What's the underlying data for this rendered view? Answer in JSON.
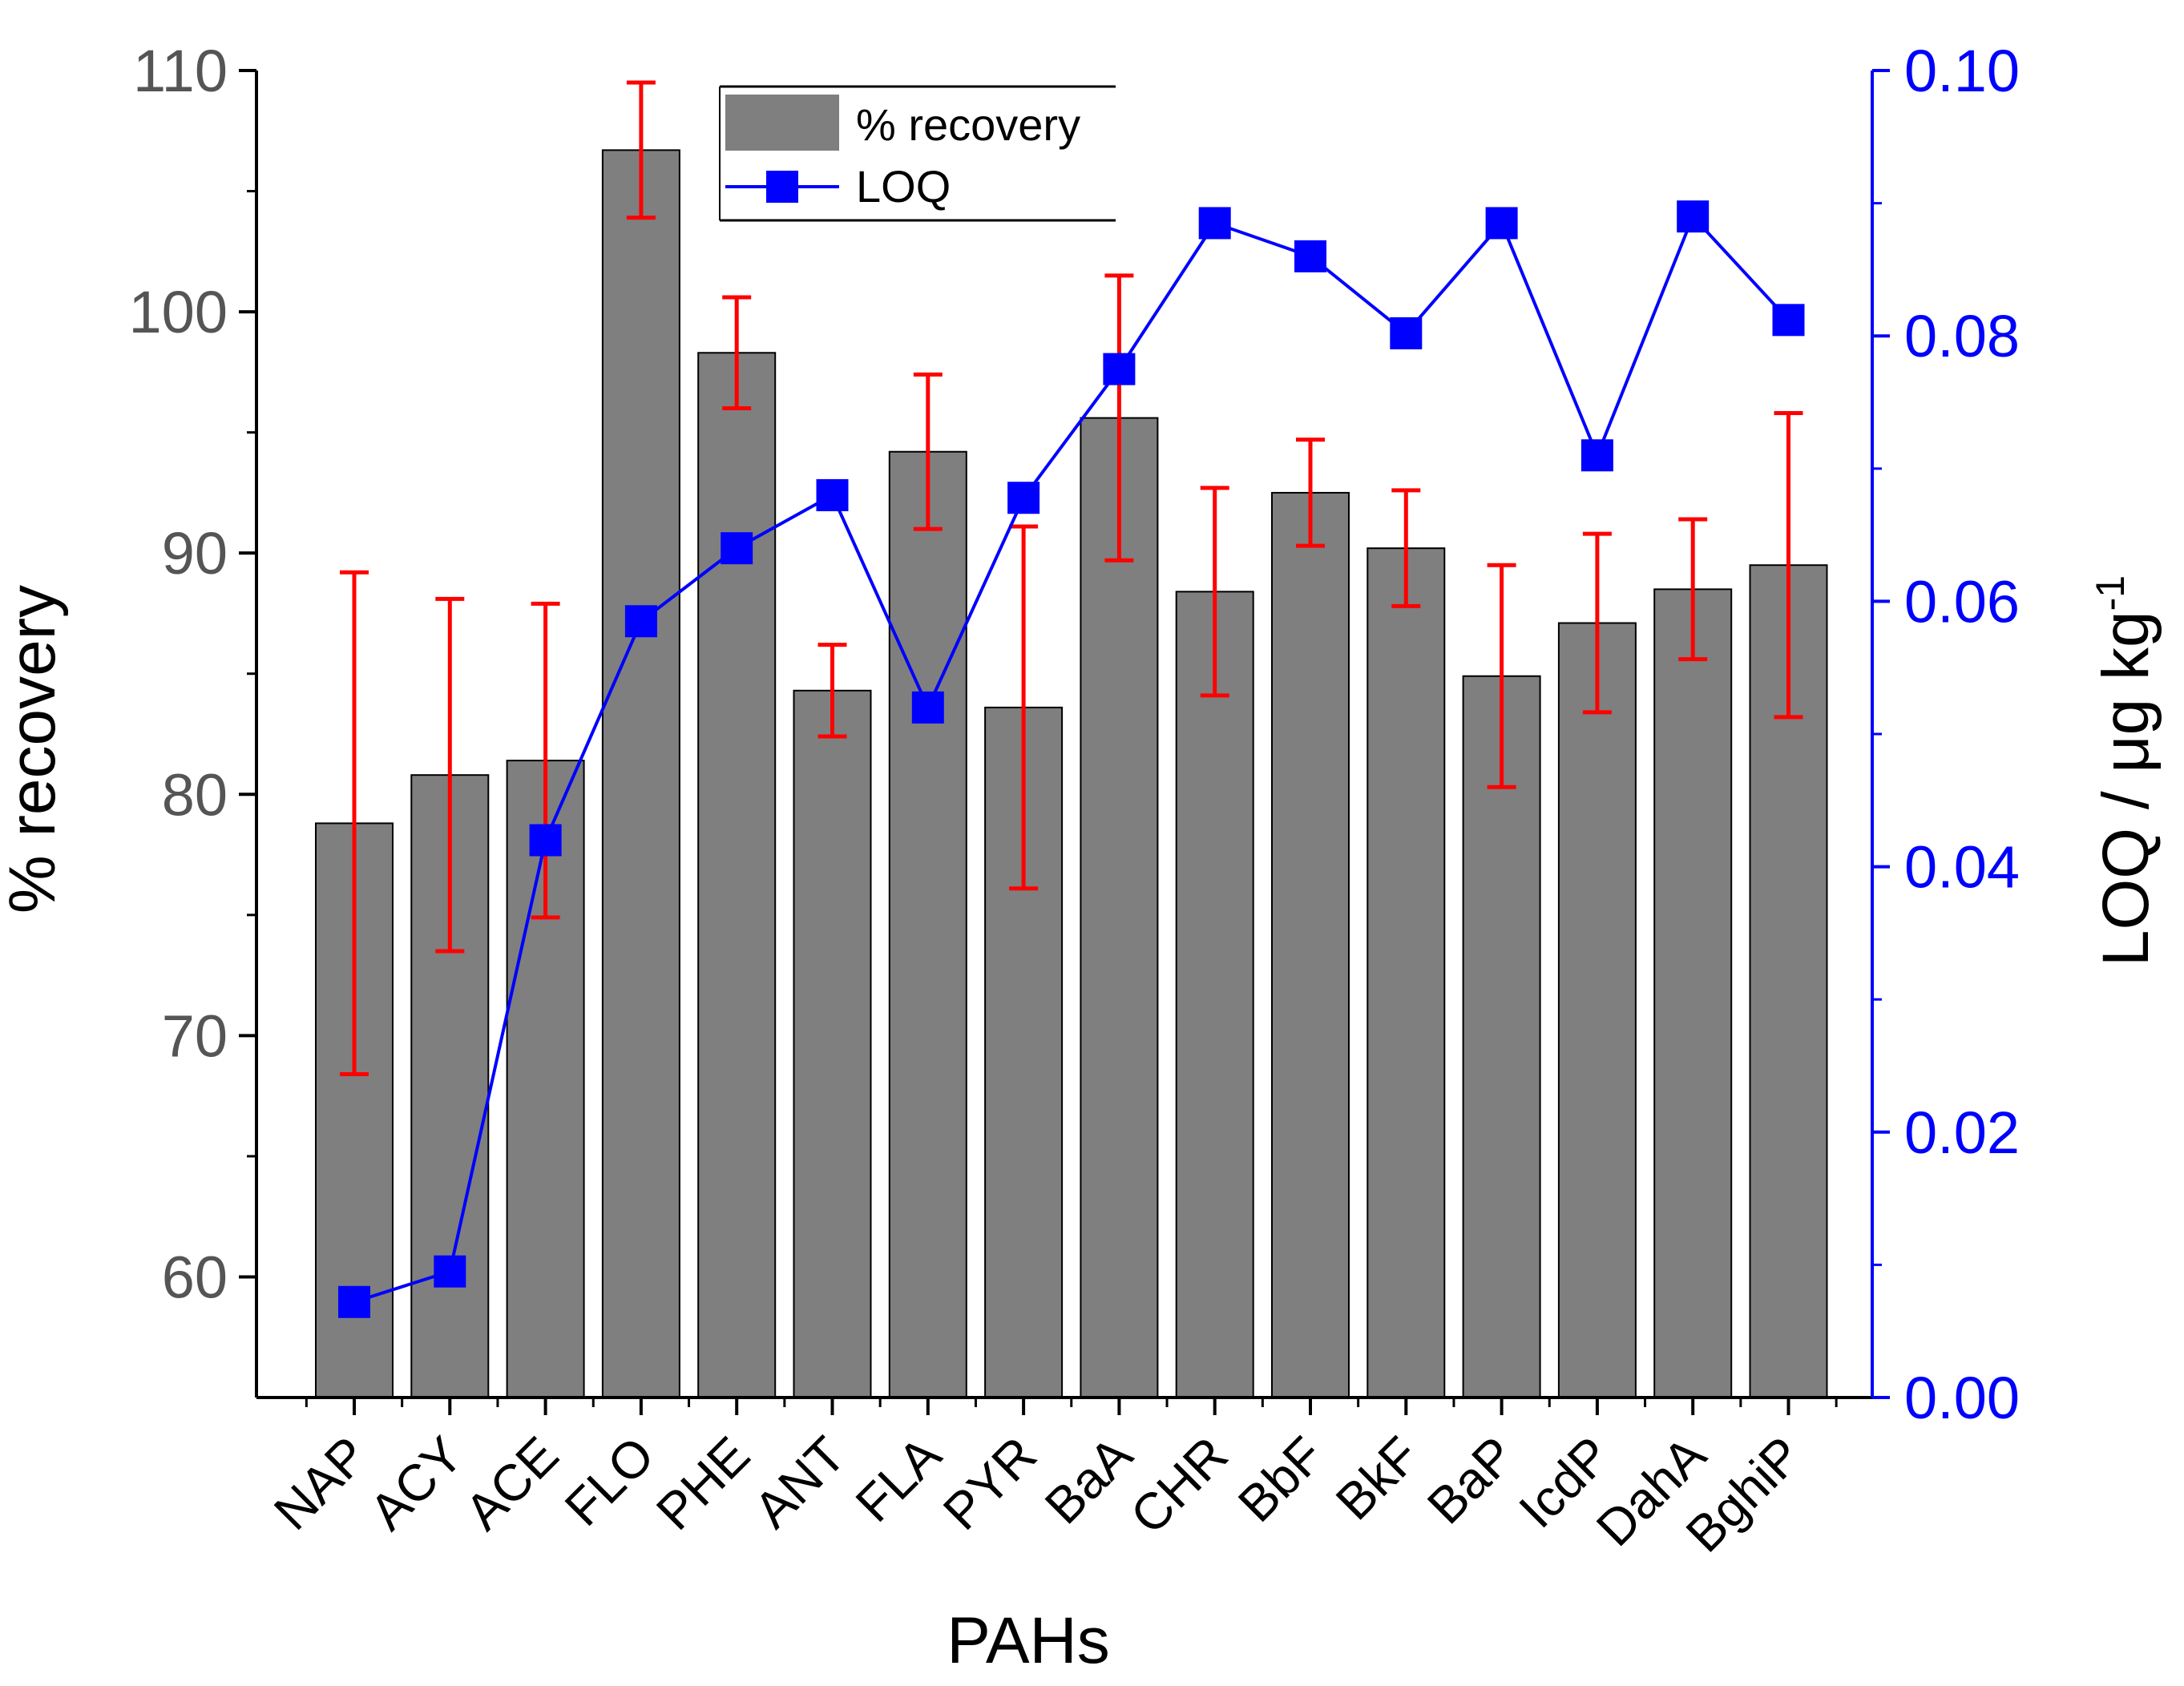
{
  "chart_data": {
    "type": "bar+line",
    "xlabel": "PAHs",
    "ylabel_left": "% recovery",
    "ylabel_right_main": "LOQ / μg kg",
    "ylabel_right_sup": "-1",
    "categories": [
      "NAP",
      "ACY",
      "ACE",
      "FLO",
      "PHE",
      "ANT",
      "FLA",
      "PYR",
      "BaA",
      "CHR",
      "BbF",
      "BkF",
      "BaP",
      "IcdP",
      "DahA",
      "BghiP"
    ],
    "y_left": {
      "min": 55,
      "max": 110,
      "ticks": [
        60,
        70,
        80,
        90,
        100,
        110
      ]
    },
    "y_right": {
      "min": 0,
      "max": 0.1,
      "ticks": [
        "0.00",
        "0.02",
        "0.04",
        "0.06",
        "0.08",
        "0.10"
      ]
    },
    "series": [
      {
        "name": "% recovery",
        "type": "bar",
        "color": "#7f7f7f",
        "axis": "left",
        "values": [
          78.8,
          80.8,
          81.4,
          106.7,
          98.3,
          84.3,
          94.2,
          83.6,
          95.6,
          88.4,
          92.5,
          90.2,
          84.9,
          87.1,
          88.5,
          89.5
        ],
        "error": [
          10.4,
          7.3,
          6.5,
          2.8,
          2.3,
          1.9,
          3.2,
          7.5,
          5.9,
          4.3,
          2.2,
          2.4,
          4.6,
          3.7,
          2.9,
          6.3
        ],
        "error_color": "#ff0000"
      },
      {
        "name": "LOQ",
        "type": "line",
        "color": "#0000ff",
        "axis": "right",
        "values": [
          0.0072,
          0.0095,
          0.042,
          0.0585,
          0.064,
          0.068,
          0.052,
          0.0678,
          0.0775,
          0.0885,
          0.086,
          0.0802,
          0.0885,
          0.071,
          0.089,
          0.0812
        ]
      }
    ],
    "legend_position": "top-center"
  }
}
